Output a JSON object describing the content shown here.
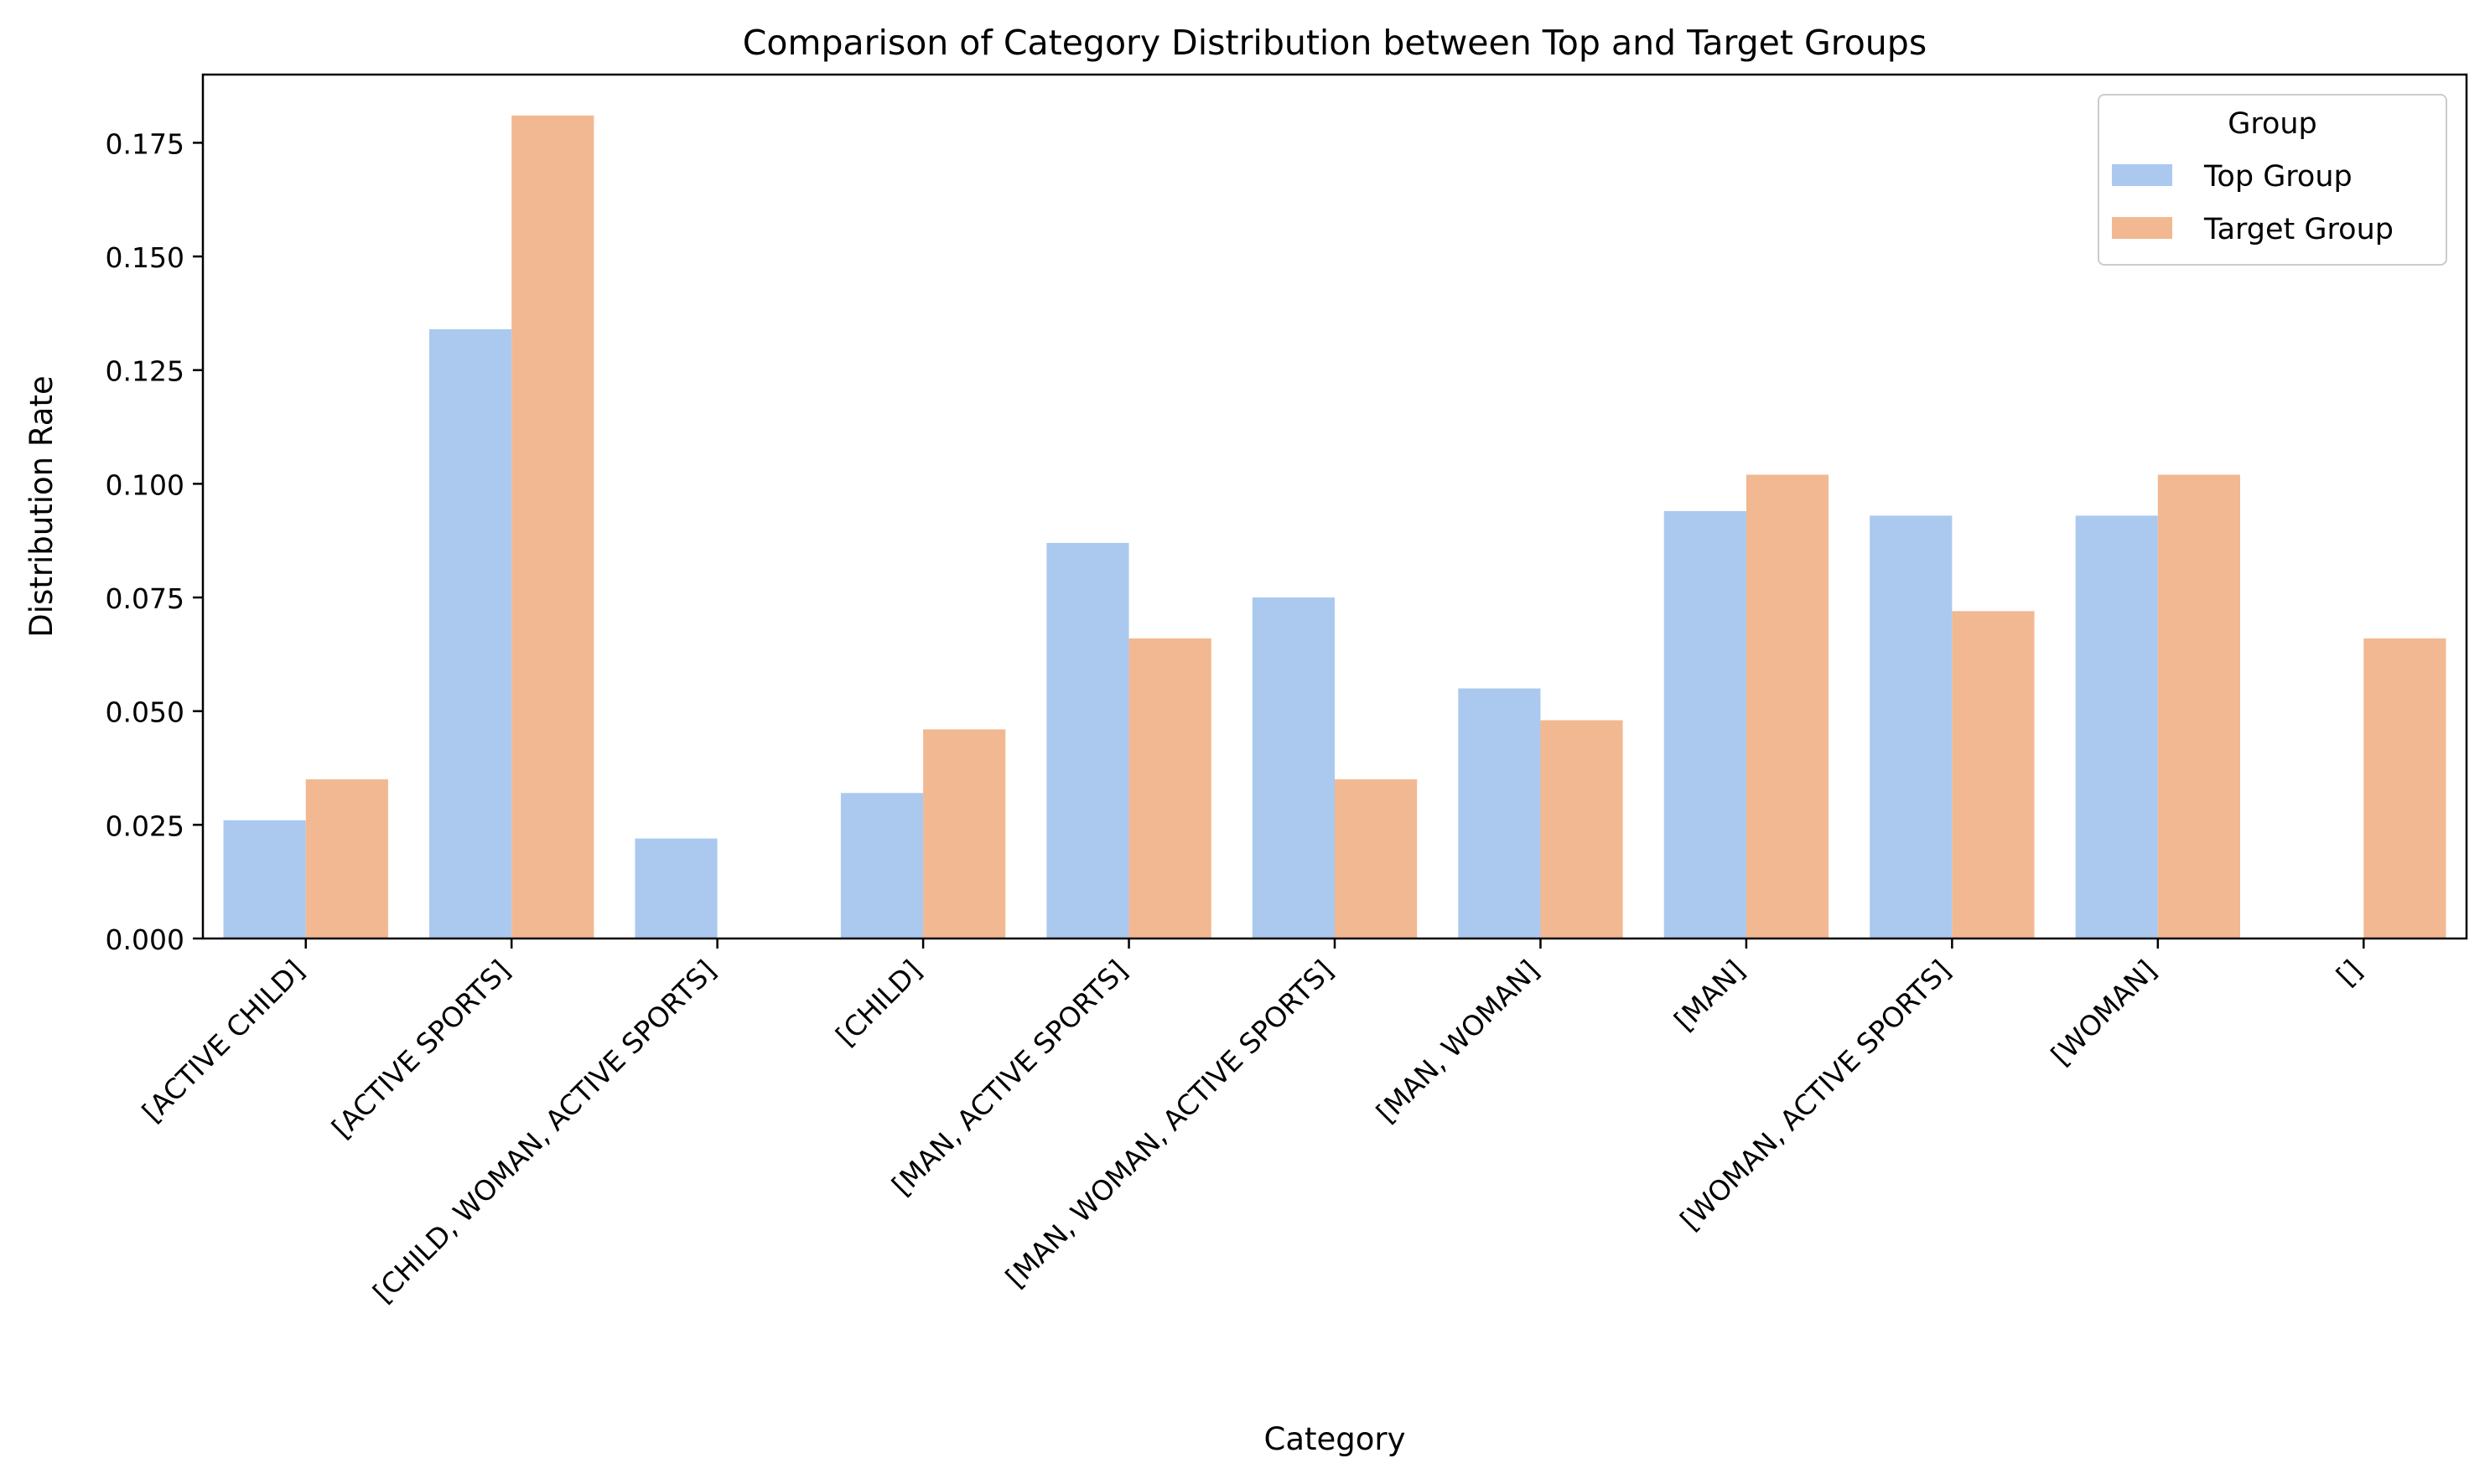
{
  "chart_data": {
    "type": "bar",
    "title": "Comparison of Category Distribution between Top and Target Groups",
    "xlabel": "Category",
    "ylabel": "Distribution Rate",
    "ylim": [
      0,
      0.19
    ],
    "yticks": [
      "0.000",
      "0.025",
      "0.050",
      "0.075",
      "0.100",
      "0.125",
      "0.150",
      "0.175"
    ],
    "grid": false,
    "legend": {
      "title": "Group",
      "placement": "top-right"
    },
    "categories": [
      "[ACTIVE CHILD]",
      "[ACTIVE SPORTS]",
      "[CHILD, WOMAN, ACTIVE SPORTS]",
      "[CHILD]",
      "[MAN, ACTIVE SPORTS]",
      "[MAN, WOMAN, ACTIVE SPORTS]",
      "[MAN, WOMAN]",
      "[MAN]",
      "[WOMAN, ACTIVE SPORTS]",
      "[WOMAN]",
      "[]"
    ],
    "series": [
      {
        "name": "Top Group",
        "color": "#abc9ef",
        "values": [
          0.026,
          0.134,
          0.022,
          0.032,
          0.087,
          0.075,
          0.055,
          0.094,
          0.093,
          0.093,
          0.0
        ]
      },
      {
        "name": "Target Group",
        "color": "#f2b891",
        "values": [
          0.035,
          0.181,
          0.0,
          0.046,
          0.066,
          0.035,
          0.048,
          0.102,
          0.072,
          0.102,
          0.066
        ]
      }
    ]
  }
}
